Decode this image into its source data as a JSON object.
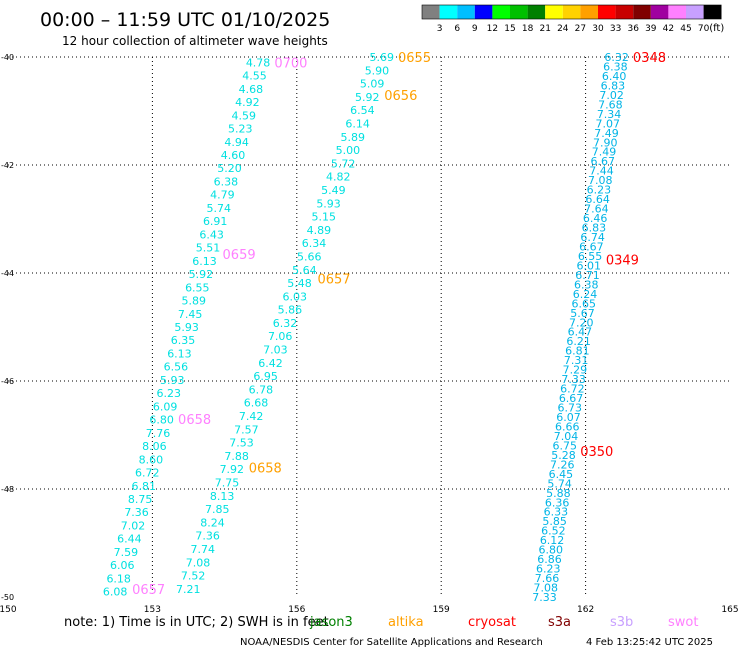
{
  "header": {
    "title": "00:00 – 11:59 UTC 01/10/2025",
    "subtitle": "12 hour collection of altimeter wave heights"
  },
  "legend_scale": {
    "labels": [
      "3",
      "6",
      "9",
      "12",
      "15",
      "18",
      "21",
      "24",
      "27",
      "30",
      "33",
      "36",
      "39",
      "42",
      "45",
      "70"
    ],
    "unit": "(ft)",
    "colors": [
      "#808080",
      "#00ffff",
      "#00bfff",
      "#0000ff",
      "#00ff00",
      "#00c000",
      "#008000",
      "#ffff00",
      "#ffd200",
      "#ffa000",
      "#ff0000",
      "#c80000",
      "#800000",
      "#a000a0",
      "#ff80ff",
      "#c8a0ff",
      "#000000"
    ]
  },
  "footer": {
    "note": "note:  1) Time is in UTC;  2) SWH is in feet",
    "credit": "NOAA/NESDIS Center for Satellite Applications and Research",
    "timestamp": "4 Feb 13:25:42 UTC 2025",
    "satellites": [
      {
        "name": "jason3",
        "color": "#008000"
      },
      {
        "name": "altika",
        "color": "#ffa000"
      },
      {
        "name": "cryosat",
        "color": "#ff0000"
      },
      {
        "name": "s3a",
        "color": "#800000"
      },
      {
        "name": "s3b",
        "color": "#c8a0ff"
      },
      {
        "name": "swot",
        "color": "#ff80ff"
      }
    ]
  },
  "chart_data": {
    "type": "scatter",
    "xlim": [
      150,
      165
    ],
    "ylim": [
      -50,
      -40
    ],
    "x_ticks": [
      150,
      153,
      156,
      159,
      162,
      165
    ],
    "y_ticks": [
      -40,
      -42,
      -44,
      -46,
      -48,
      -50
    ],
    "grid": true,
    "series": [
      {
        "name": "swot",
        "color": "#00e0e0",
        "time_color": "#ff80ff",
        "x0": 155.45,
        "y0": -40.1,
        "x1": 152.48,
        "y1": -49.9,
        "values": [
          "4.78",
          "4.55",
          "4.68",
          "4.92",
          "4.59",
          "5.23",
          "4.94",
          "4.60",
          "5.20",
          "6.38",
          "4.79",
          "5.74",
          "6.91",
          "6.43",
          "5.51",
          "6.13",
          "5.92",
          "6.55",
          "5.89",
          "7.45",
          "5.93",
          "6.35",
          "6.13",
          "6.56",
          "5.93",
          "6.23",
          "6.09",
          "6.80",
          "7.76",
          "8.06",
          "8.60",
          "6.72",
          "6.81",
          "8.75",
          "7.36",
          "7.02",
          "6.44",
          "7.59",
          "6.06",
          "6.18",
          "6.08"
        ],
        "times": [
          {
            "label": "0700",
            "lat": -40.1
          },
          {
            "label": "0659",
            "lat": -43.65
          },
          {
            "label": "0658",
            "lat": -46.7
          },
          {
            "label": "0657",
            "lat": -49.85
          }
        ]
      },
      {
        "name": "altika",
        "color": "#00e0e0",
        "time_color": "#ffa000",
        "x0": 158.02,
        "y0": -40.0,
        "x1": 154.0,
        "y1": -49.85,
        "values": [
          "5.69",
          "5.90",
          "5.09",
          "5.92",
          "6.54",
          "6.14",
          "5.89",
          "5.00",
          "5.72",
          "4.82",
          "5.49",
          "5.93",
          "5.15",
          "4.89",
          "6.34",
          "5.66",
          "5.64",
          "5.48",
          "6.03",
          "5.86",
          "6.32",
          "7.06",
          "7.03",
          "6.42",
          "6.95",
          "6.78",
          "6.68",
          "7.42",
          "7.57",
          "7.53",
          "7.88",
          "7.92",
          "7.75",
          "8.13",
          "7.85",
          "8.24",
          "7.36",
          "7.74",
          "7.08",
          "7.52",
          "7.21"
        ],
        "times": [
          {
            "label": "0655",
            "lat": -40.0
          },
          {
            "label": "0656",
            "lat": -40.7
          },
          {
            "label": "0657",
            "lat": -44.1
          },
          {
            "label": "0658",
            "lat": -47.6
          }
        ]
      },
      {
        "name": "cryosat",
        "color": "#00b4e6",
        "time_color": "#ff0000",
        "x0": 162.9,
        "y0": -40.0,
        "x1": 161.4,
        "y1": -50.0,
        "values": [
          "6.32",
          "6.38",
          "6.40",
          "6.83",
          "7.02",
          "7.68",
          "7.34",
          "7.07",
          "7.49",
          "7.90",
          "7.49",
          "6.67",
          "7.44",
          "7.08",
          "6.23",
          "6.64",
          "7.64",
          "6.46",
          "6.83",
          "6.74",
          "6.67",
          "6.55",
          "6.01",
          "6.71",
          "6.38",
          "6.24",
          "6.65",
          "5.67",
          "7.20",
          "6.47",
          "6.21",
          "6.81",
          "7.31",
          "7.29",
          "7.33",
          "6.72",
          "6.67",
          "6.73",
          "6.07",
          "6.66",
          "7.04",
          "6.75",
          "5.28",
          "7.26",
          "6.45",
          "5.74",
          "5.88",
          "6.36",
          "6.33",
          "5.85",
          "6.52",
          "6.12",
          "6.80",
          "6.86",
          "6.23",
          "7.66",
          "7.08",
          "7.33"
        ],
        "times": [
          {
            "label": "0348",
            "lat": -40.0
          },
          {
            "label": "0349",
            "lat": -43.75
          },
          {
            "label": "0350",
            "lat": -47.3
          }
        ]
      }
    ]
  }
}
